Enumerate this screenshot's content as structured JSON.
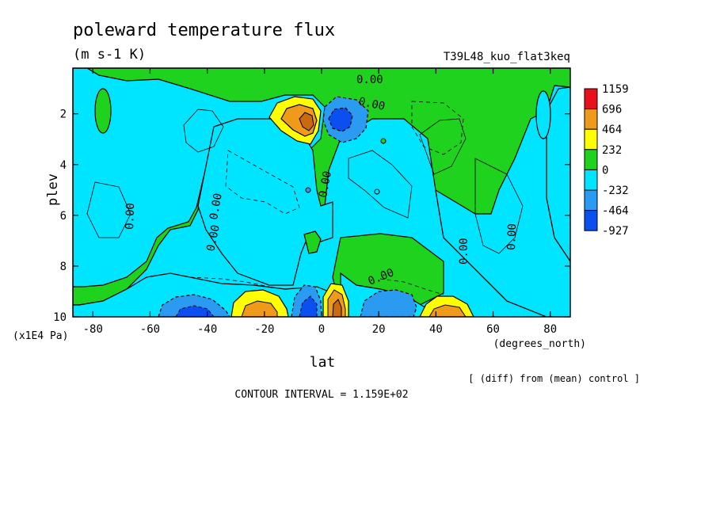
{
  "chart_data": {
    "type": "contour",
    "title": "poleward temperature flux",
    "units": "(m s-1 K)",
    "run_label": "T39L48_kuo_flat3keq",
    "xlabel": "lat",
    "x_units": "(degrees_north)",
    "ylabel": "plev",
    "y_units": "(x1E4 Pa)",
    "xlim": [
      -87,
      87
    ],
    "ylim": [
      10,
      0.2
    ],
    "x_ticks": [
      -80,
      -60,
      -40,
      -20,
      0,
      20,
      40,
      60,
      80
    ],
    "x_tick_labels": [
      "-80",
      "-60",
      "-40",
      "-20",
      "0",
      "20",
      "40",
      "60",
      "80"
    ],
    "y_ticks": [
      2,
      4,
      6,
      8,
      10
    ],
    "y_tick_labels": [
      "2",
      "4",
      "6",
      "8",
      "10"
    ],
    "contour_labels": [
      "0.00",
      "0.00",
      "0.00",
      "0.00",
      "0.00",
      "0.00",
      "0.00",
      "0.00",
      "0.00",
      "0.00"
    ],
    "legend_levels": [
      "1159",
      "696",
      "464",
      "232",
      "0",
      "-232",
      "-464",
      "-927"
    ],
    "legend_colors": [
      "#e8101a",
      "#f09a1c",
      "#ffff00",
      "#1ed21e",
      "#00e5ff",
      "#2a9bf0",
      "#0b4ff0"
    ],
    "features": [
      {
        "lat": -5,
        "plev": 2.2,
        "value": 700
      },
      {
        "lat": 5,
        "plev": 2.1,
        "value": -560
      },
      {
        "lat": -45,
        "plev": 9.8,
        "value": -600
      },
      {
        "lat": -25,
        "plev": 9.7,
        "value": 600
      },
      {
        "lat": -7,
        "plev": 9.7,
        "value": -500
      },
      {
        "lat": 6,
        "plev": 9.6,
        "value": 700
      },
      {
        "lat": 25,
        "plev": 9.8,
        "value": -400
      },
      {
        "lat": 45,
        "plev": 9.7,
        "value": 500
      }
    ],
    "footer_note": "[ (diff) from (mean) control ]",
    "contour_interval": "CONTOUR INTERVAL = 1.159E+02"
  }
}
